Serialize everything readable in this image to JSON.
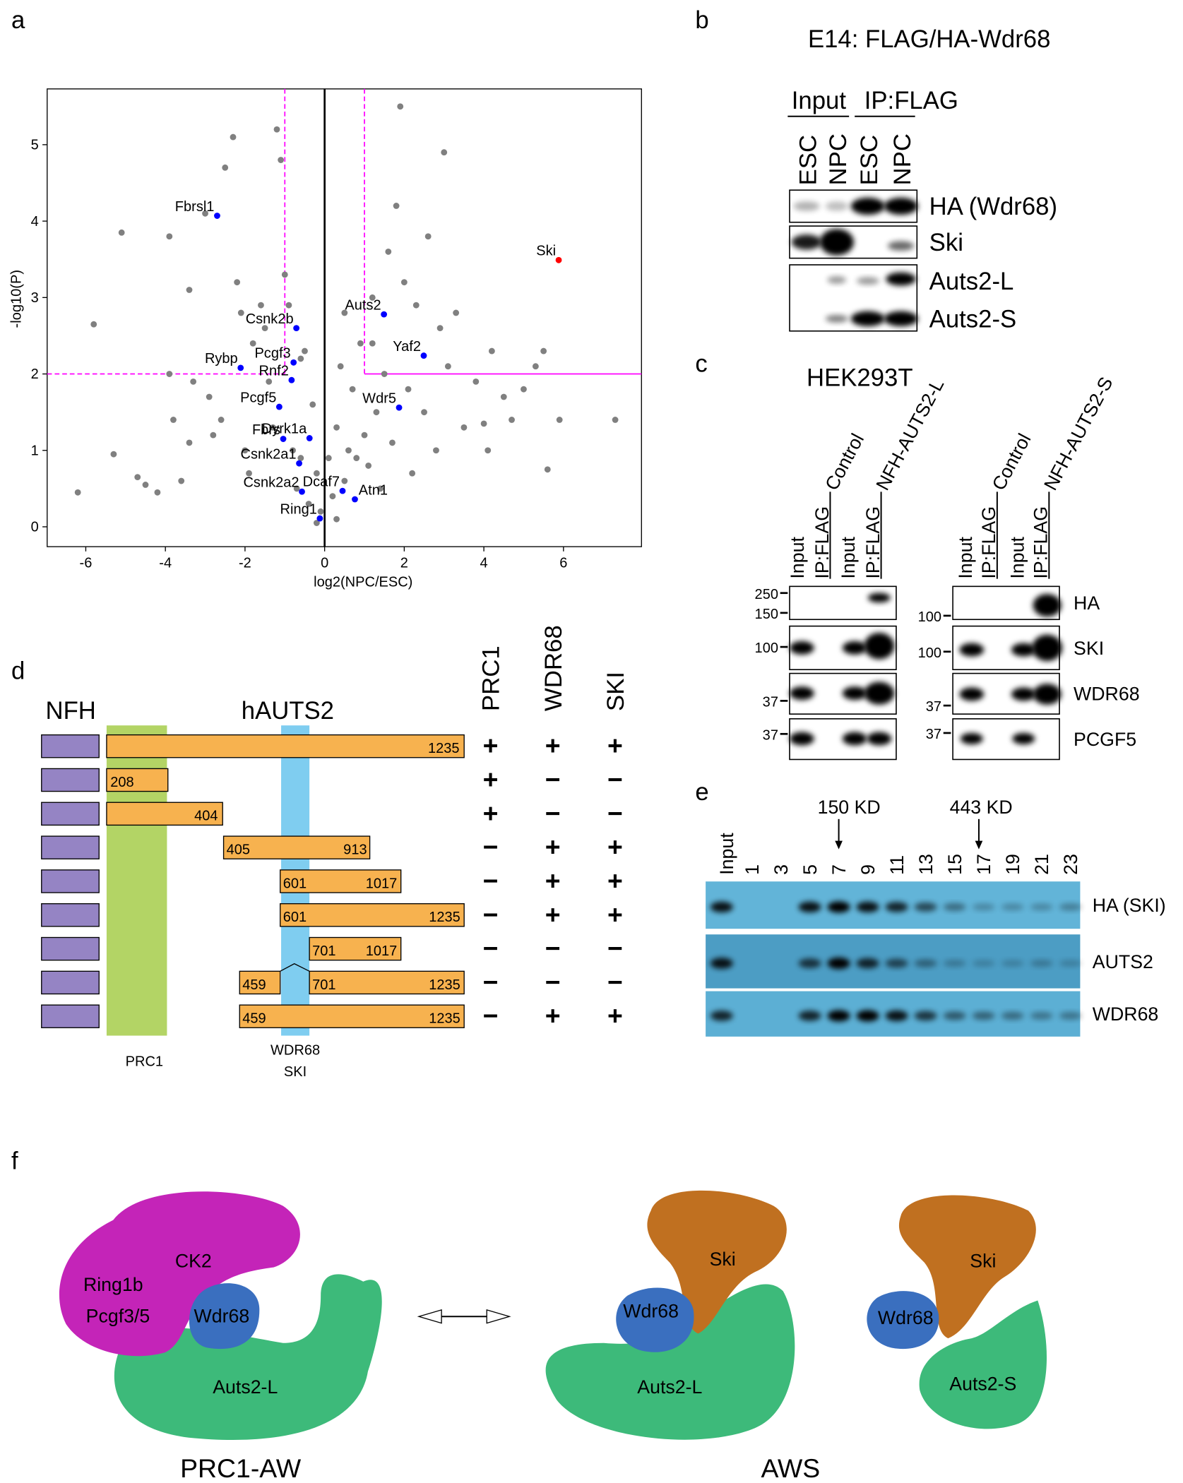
{
  "panels": [
    "a",
    "b",
    "c",
    "d",
    "e",
    "f"
  ],
  "chart_data": {
    "type": "scatter",
    "xlabel": "log2(NPC/ESC)",
    "ylabel": "-log10(P)",
    "xlim": [
      -6.97,
      7.96
    ],
    "ylim": [
      -0.26,
      5.73
    ],
    "xticks": [
      -6,
      -4,
      -2,
      0,
      2,
      4,
      6
    ],
    "yticks": [
      0,
      1,
      2,
      3,
      4,
      5
    ],
    "threshold_x": [
      -1,
      1
    ],
    "threshold_y": 2,
    "threshold_color": "#ff00ff",
    "series": [
      {
        "color": "#808080",
        "x": [
          -6.2,
          -5.8,
          -5.1,
          -5.3,
          -4.7,
          -4.5,
          -4.2,
          -3.9,
          -3.8,
          -3.9,
          -3.6,
          -3.4,
          -3.3,
          -3.4,
          -3.0,
          -2.9,
          -2.8,
          -2.6,
          -2.5,
          -2.3,
          -2.2,
          -2.1,
          -2.0,
          -1.9,
          -1.8,
          -1.6,
          -1.5,
          -1.4,
          -1.3,
          -1.2,
          -1.1,
          -1.0,
          -0.9,
          -0.8,
          -0.7,
          -0.6,
          -0.5,
          -0.4,
          -0.3,
          -0.2,
          -0.1,
          0.1,
          0.2,
          0.3,
          0.4,
          0.5,
          0.6,
          0.7,
          0.8,
          0.9,
          1.0,
          1.1,
          1.2,
          1.3,
          1.4,
          1.5,
          1.6,
          1.7,
          1.8,
          1.9,
          2.0,
          2.1,
          2.2,
          2.3,
          2.5,
          2.6,
          2.8,
          3.0,
          3.1,
          3.3,
          3.5,
          3.8,
          4.0,
          4.2,
          4.5,
          4.7,
          5.0,
          5.3,
          5.5,
          5.6,
          5.9,
          7.3,
          0.5,
          -0.6,
          1.2,
          0.3,
          -0.2,
          2.9,
          4.1
        ],
        "values": [
          0.45,
          2.65,
          3.85,
          0.95,
          0.65,
          0.55,
          0.45,
          3.8,
          1.4,
          2.0,
          0.6,
          1.1,
          1.9,
          3.1,
          4.1,
          1.7,
          1.2,
          1.4,
          4.7,
          5.1,
          3.2,
          2.8,
          1.0,
          0.7,
          2.4,
          2.9,
          2.6,
          1.9,
          1.3,
          5.2,
          4.8,
          3.3,
          2.9,
          1.0,
          0.5,
          0.9,
          2.3,
          0.3,
          1.6,
          0.7,
          0.2,
          0.9,
          0.4,
          1.3,
          2.1,
          0.6,
          1.0,
          1.8,
          0.9,
          2.4,
          1.2,
          0.8,
          3.0,
          1.5,
          0.5,
          2.0,
          3.6,
          1.1,
          4.2,
          5.5,
          3.2,
          1.8,
          0.7,
          2.9,
          1.5,
          3.8,
          1.0,
          4.9,
          2.1,
          2.8,
          1.3,
          1.9,
          1.35,
          2.3,
          1.7,
          1.4,
          1.8,
          2.1,
          2.3,
          0.75,
          1.4,
          1.4,
          2.8,
          2.2,
          2.4,
          0.1,
          0.05,
          2.6,
          1.0
        ]
      },
      {
        "color": "#0000ff",
        "x": [
          -2.7,
          1.49,
          -0.71,
          2.49,
          -0.78,
          -2.11,
          -0.83,
          -1.14,
          1.87,
          -1.04,
          -0.38,
          -0.64,
          -0.57,
          0.45,
          0.76,
          -0.12
        ],
        "values": [
          4.07,
          2.78,
          2.6,
          2.24,
          2.15,
          2.08,
          1.92,
          1.57,
          1.56,
          1.15,
          1.16,
          0.83,
          0.46,
          0.47,
          0.36,
          0.11
        ],
        "labels": [
          "Fbrsl1",
          "Auts2",
          "Csnk2b",
          "Yaf2",
          "Pcgf3",
          "Rybp",
          "Rnf2",
          "Pcgf5",
          "Wdr5",
          "Fbrs",
          "Dyrk1a",
          "Csnk2a1",
          "Csnk2a2",
          "Dcaf7",
          "Atn1",
          "Ring1"
        ]
      },
      {
        "color": "#ff0000",
        "x": [
          5.88
        ],
        "values": [
          3.49
        ],
        "labels": [
          "Ski"
        ]
      }
    ]
  },
  "panel_b": {
    "title": "E14: FLAG/HA-Wdr68",
    "groups": [
      "Input",
      "IP:FLAG"
    ],
    "lanes": [
      "ESC",
      "NPC",
      "ESC",
      "NPC"
    ],
    "bands": [
      "HA (Wdr68)",
      "Ski",
      "Auts2-L",
      "Auts2-S"
    ]
  },
  "panel_c": {
    "cell": "HEK293T",
    "left": {
      "conditions": [
        "Control",
        "NFH-AUTS2-L"
      ],
      "lanes": [
        "Input",
        "IP:FLAG",
        "Input",
        "IP:FLAG"
      ],
      "markers": [
        "250",
        "150",
        "100",
        "37",
        "37"
      ]
    },
    "right": {
      "conditions": [
        "Control",
        "NFH-AUTS2-S"
      ],
      "lanes": [
        "Input",
        "IP:FLAG",
        "Input",
        "IP:FLAG"
      ],
      "markers": [
        "100",
        "100",
        "37",
        "37"
      ]
    },
    "bands": [
      "HA",
      "SKI",
      "WDR68",
      "PCGF5"
    ]
  },
  "panel_d": {
    "tag": "NFH",
    "protein": "hAUTS2",
    "columns": [
      "PRC1",
      "WDR68",
      "SKI"
    ],
    "rows": [
      [
        "1235"
      ],
      [
        "208"
      ],
      [
        "404"
      ],
      [
        "405",
        "913"
      ],
      [
        "601",
        "1017"
      ],
      [
        "601",
        "1235"
      ],
      [
        "701",
        "1017"
      ],
      [
        "459",
        "701",
        "1235"
      ],
      [
        "459",
        "1235"
      ]
    ],
    "signs": [
      [
        "+",
        "+",
        "+"
      ],
      [
        "+",
        "−",
        "−"
      ],
      [
        "+",
        "−",
        "−"
      ],
      [
        "−",
        "+",
        "+"
      ],
      [
        "−",
        "+",
        "+"
      ],
      [
        "−",
        "+",
        "+"
      ],
      [
        "−",
        "−",
        "−"
      ],
      [
        "−",
        "−",
        "−"
      ],
      [
        "−",
        "+",
        "+"
      ]
    ],
    "sign_colors": {
      "+": "#1a33ff",
      "−": "#ff2a2a"
    },
    "regions": [
      "PRC1",
      "WDR68",
      "SKI"
    ]
  },
  "panel_e": {
    "input": "Input",
    "fractions": [
      "1",
      "3",
      "5",
      "7",
      "9",
      "11",
      "13",
      "15",
      "17",
      "19",
      "21",
      "23"
    ],
    "markers": [
      "150 KD",
      "443 KD"
    ],
    "bands": [
      "HA (SKI)",
      "AUTS2",
      "WDR68"
    ]
  },
  "panel_f": {
    "left": {
      "labels": [
        "CK2",
        "Ring1b",
        "Pcgf3/5",
        "Wdr68",
        "Auts2-L"
      ],
      "name": "PRC1-AW"
    },
    "mid": {
      "labels": [
        "Ski",
        "Wdr68",
        "Auts2-L"
      ]
    },
    "right": {
      "labels": [
        "Ski",
        "Wdr68",
        "Auts2-S"
      ]
    },
    "name": "AWS"
  }
}
